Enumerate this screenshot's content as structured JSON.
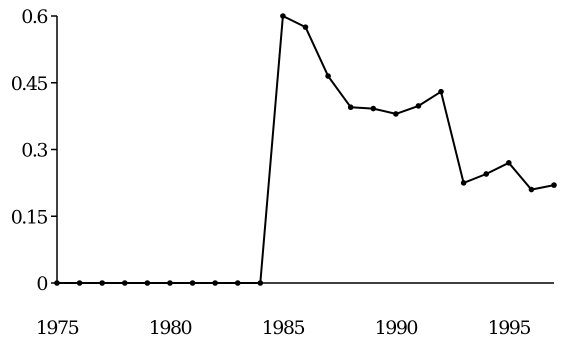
{
  "chart_data": {
    "type": "line",
    "title": "",
    "xlabel": "",
    "ylabel": "",
    "xlim": [
      1975,
      1997
    ],
    "ylim": [
      0,
      0.6
    ],
    "grid": false,
    "legend": "none",
    "x_ticks": [
      1975,
      1980,
      1985,
      1990,
      1995
    ],
    "x_tick_labels": [
      "1975",
      "1980",
      "1985",
      "1990",
      "1995"
    ],
    "y_ticks": [
      0,
      0.15,
      0.3,
      0.45,
      0.6
    ],
    "y_tick_labels": [
      "0",
      "0.15",
      "0.3",
      "0.45",
      "0.6"
    ],
    "colors": {
      "line": "#000000",
      "axis": "#000000"
    },
    "series": [
      {
        "x": [
          1975,
          1976,
          1977,
          1978,
          1979,
          1980,
          1981,
          1982,
          1983,
          1984,
          1985,
          1986,
          1987,
          1988,
          1989,
          1990,
          1991,
          1992,
          1993,
          1994,
          1995,
          1996,
          1997
        ],
        "values": [
          0,
          0,
          0,
          0,
          0,
          0,
          0,
          0,
          0,
          0,
          0.6,
          0.575,
          0.465,
          0.395,
          0.392,
          0.38,
          0.398,
          0.43,
          0.225,
          0.245,
          0.27,
          0.21,
          0.22
        ]
      }
    ]
  }
}
